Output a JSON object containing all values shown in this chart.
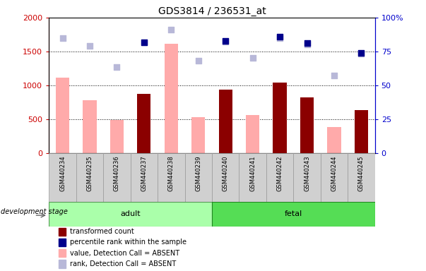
{
  "title": "GDS3814 / 236531_at",
  "samples": [
    "GSM440234",
    "GSM440235",
    "GSM440236",
    "GSM440237",
    "GSM440238",
    "GSM440239",
    "GSM440240",
    "GSM440241",
    "GSM440242",
    "GSM440243",
    "GSM440244",
    "GSM440245"
  ],
  "n_adult": 6,
  "n_fetal": 6,
  "transformed_count": [
    null,
    null,
    null,
    870,
    null,
    null,
    940,
    null,
    1040,
    820,
    null,
    630
  ],
  "value_absent": [
    1110,
    780,
    490,
    null,
    1610,
    535,
    null,
    560,
    null,
    null,
    380,
    null
  ],
  "rank_absent": [
    1700,
    1580,
    1270,
    1630,
    1820,
    1360,
    1650,
    1410,
    1700,
    1600,
    1150,
    1470
  ],
  "percentile_present": [
    null,
    null,
    null,
    82,
    null,
    null,
    83,
    null,
    86,
    81,
    null,
    74
  ],
  "ylim_left": [
    0,
    2000
  ],
  "ylim_right": [
    0,
    100
  ],
  "yticks_left": [
    0,
    500,
    1000,
    1500,
    2000
  ],
  "yticks_right": [
    0,
    25,
    50,
    75,
    100
  ],
  "color_transformed": "#8b0000",
  "color_percentile": "#00008b",
  "color_value_absent": "#ffaaaa",
  "color_rank_absent": "#b8b8d8",
  "adult_color": "#aaffaa",
  "fetal_color": "#55dd55",
  "left_axis_color": "#cc0000",
  "right_axis_color": "#0000cc",
  "bar_width": 0.5,
  "grid_lines": [
    500,
    1000,
    1500
  ]
}
